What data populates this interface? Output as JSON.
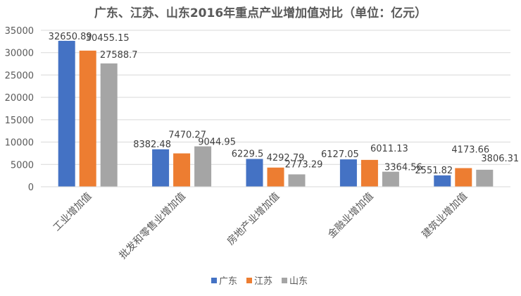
{
  "chart_data": {
    "type": "bar",
    "title": "广东、江苏、山东2016年重点产业增加值对比（单位：亿元）",
    "xlabel": "",
    "ylabel": "",
    "ylim": [
      0,
      35000
    ],
    "yticks": [
      "0",
      "5000",
      "10000",
      "15000",
      "20000",
      "25000",
      "30000",
      "35000"
    ],
    "grid": true,
    "legend": "bottom",
    "categories": [
      "工业增加值",
      "批发和零售业增加值",
      "房地产业增加值",
      "金融业增加值",
      "建筑业增加值"
    ],
    "series": [
      {
        "name": "广东",
        "color": "#4472C4",
        "values": [
          32650.89,
          8382.48,
          6229.5,
          6127.05,
          2551.82
        ],
        "labels": [
          "32650.89",
          "8382.48",
          "6229.5",
          "6127.05",
          "2551.82"
        ]
      },
      {
        "name": "江苏",
        "color": "#ED7D31",
        "values": [
          30455.15,
          7470.27,
          4292.79,
          6011.13,
          4173.66
        ],
        "labels": [
          "30455.15",
          "7470.27",
          "4292.79",
          "6011.13",
          "4173.66"
        ]
      },
      {
        "name": "山东",
        "color": "#A5A5A5",
        "values": [
          27588.7,
          9044.95,
          2773.29,
          3364.56,
          3806.31
        ],
        "labels": [
          "27588.7",
          "9044.95",
          "2773.29",
          "3364.56",
          "3806.31"
        ]
      }
    ]
  }
}
